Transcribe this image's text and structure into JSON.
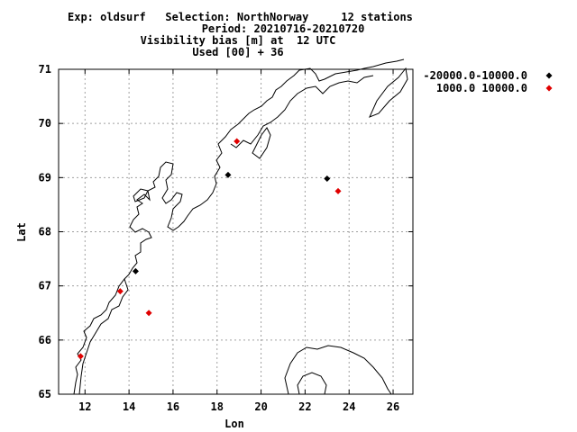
{
  "header": {
    "line1": "Exp: oldsurf   Selection: NorthNorway     12 stations",
    "line2": "Period: 20210716-20210720",
    "line3": "Visibility bias [m] at  12 UTC",
    "line4": "Used [00] + 36"
  },
  "chart_data": {
    "type": "scatter",
    "xlabel": "Lon",
    "ylabel": "Lat",
    "xlim": [
      10.8,
      26.9
    ],
    "ylim": [
      65,
      71
    ],
    "xticks": [
      12,
      14,
      16,
      18,
      20,
      22,
      24,
      26
    ],
    "yticks": [
      65,
      66,
      67,
      68,
      69,
      70,
      71
    ],
    "grid": true,
    "legend_position": "right",
    "series": [
      {
        "name": "-20000.0-10000.0",
        "color": "#000000",
        "points": [
          {
            "lon": 14.3,
            "lat": 67.27
          },
          {
            "lon": 18.5,
            "lat": 69.05
          },
          {
            "lon": 23.0,
            "lat": 68.98
          }
        ]
      },
      {
        "name": "1000.0 10000.0",
        "color": "#e00000",
        "points": [
          {
            "lon": 11.8,
            "lat": 65.7
          },
          {
            "lon": 13.6,
            "lat": 66.9
          },
          {
            "lon": 14.9,
            "lat": 66.5
          },
          {
            "lon": 18.9,
            "lat": 69.67
          },
          {
            "lon": 23.5,
            "lat": 68.75
          }
        ]
      }
    ]
  }
}
